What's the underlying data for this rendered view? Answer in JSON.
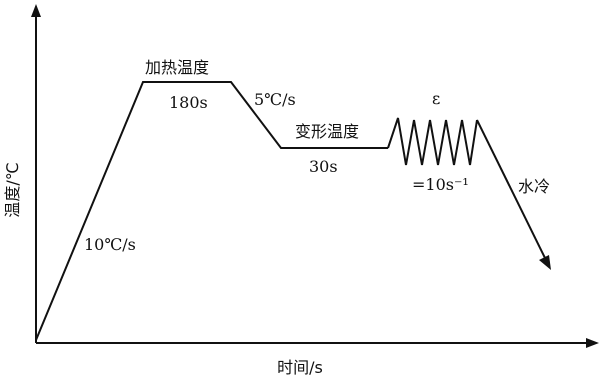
{
  "axes": {
    "y_label": "温度/℃",
    "x_label": "时间/s"
  },
  "stages": {
    "heating_rate": "10℃/s",
    "heating_temperature": "加热温度",
    "heating_hold": "180s",
    "cooling_rate": "5℃/s",
    "deformation_temperature": "变形温度",
    "deformation_hold": "30s",
    "strain_symbol": "ε",
    "strain_rate": "=10s⁻¹",
    "quench": "水冷"
  }
}
